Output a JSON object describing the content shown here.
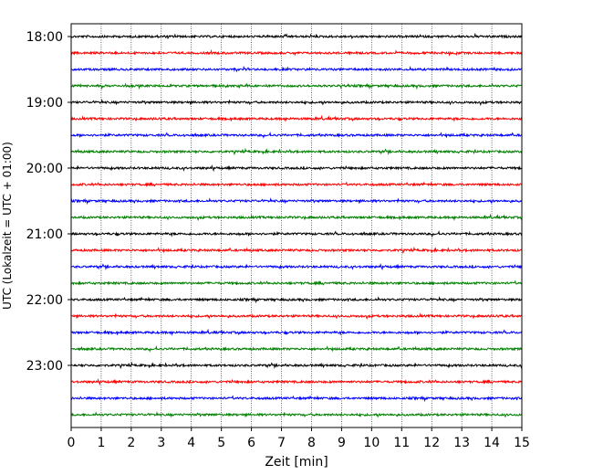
{
  "chart_data": {
    "type": "line",
    "title": "",
    "xlabel": "Zeit  [min]",
    "ylabel": "UTC (Lokalzeit = UTC + 01:00)",
    "xlim": [
      0,
      15
    ],
    "x_ticks": [
      "0",
      "1",
      "2",
      "3",
      "4",
      "5",
      "6",
      "7",
      "8",
      "9",
      "10",
      "11",
      "12",
      "13",
      "14",
      "15"
    ],
    "y_ticks": [
      "18:00",
      "19:00",
      "20:00",
      "21:00",
      "22:00",
      "23:00"
    ],
    "grid": "vertical dotted",
    "trace_colors": [
      "#000000",
      "#ff0000",
      "#0000ff",
      "#008000"
    ],
    "series": [
      {
        "start": "18:00",
        "color": "#000000"
      },
      {
        "start": "18:15",
        "color": "#ff0000"
      },
      {
        "start": "18:30",
        "color": "#0000ff"
      },
      {
        "start": "18:45",
        "color": "#008000"
      },
      {
        "start": "19:00",
        "color": "#000000"
      },
      {
        "start": "19:15",
        "color": "#ff0000"
      },
      {
        "start": "19:30",
        "color": "#0000ff"
      },
      {
        "start": "19:45",
        "color": "#008000"
      },
      {
        "start": "20:00",
        "color": "#000000"
      },
      {
        "start": "20:15",
        "color": "#ff0000"
      },
      {
        "start": "20:30",
        "color": "#0000ff"
      },
      {
        "start": "20:45",
        "color": "#008000"
      },
      {
        "start": "21:00",
        "color": "#000000"
      },
      {
        "start": "21:15",
        "color": "#ff0000"
      },
      {
        "start": "21:30",
        "color": "#0000ff"
      },
      {
        "start": "21:45",
        "color": "#008000"
      },
      {
        "start": "22:00",
        "color": "#000000"
      },
      {
        "start": "22:15",
        "color": "#ff0000"
      },
      {
        "start": "22:30",
        "color": "#0000ff"
      },
      {
        "start": "22:45",
        "color": "#008000"
      },
      {
        "start": "23:00",
        "color": "#000000"
      },
      {
        "start": "23:15",
        "color": "#ff0000"
      },
      {
        "start": "23:30",
        "color": "#0000ff"
      },
      {
        "start": "23:45",
        "color": "#008000"
      }
    ]
  }
}
